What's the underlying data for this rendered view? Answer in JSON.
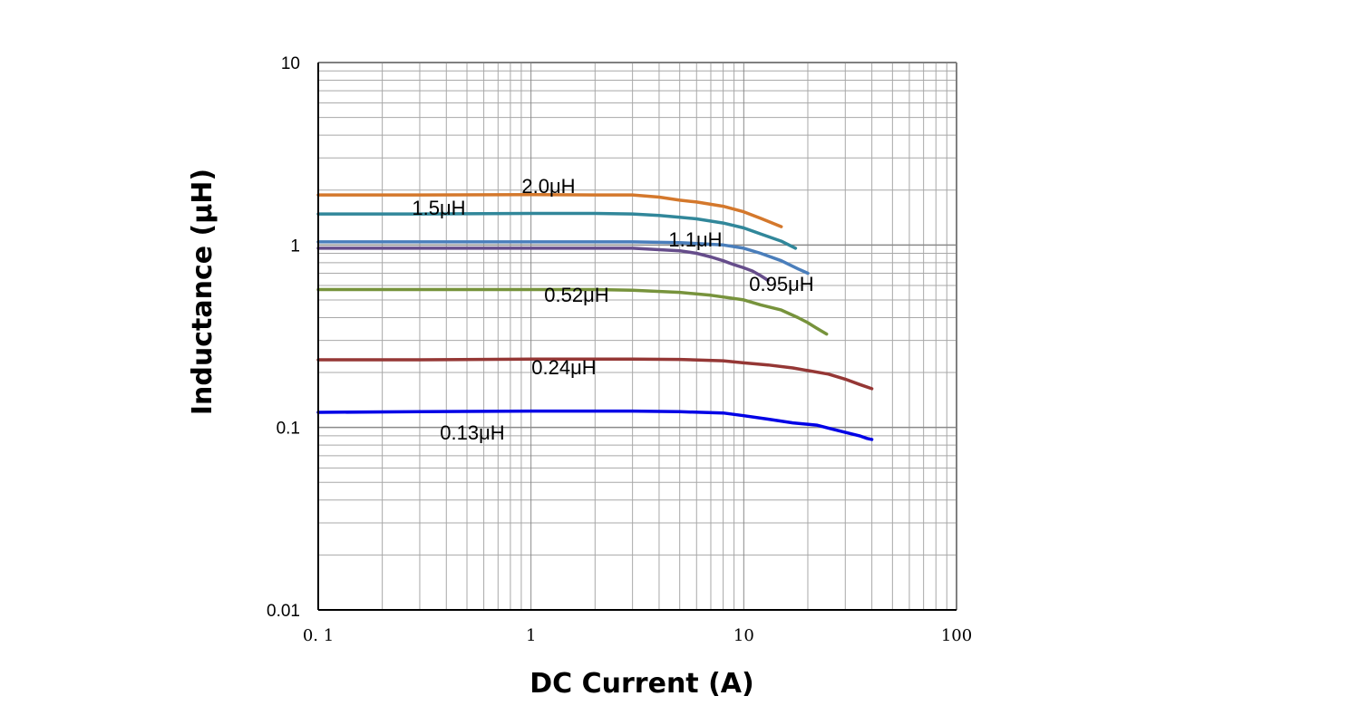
{
  "chart_data": {
    "type": "line",
    "xlabel": "DC Current (A)",
    "ylabel": "Inductance (μH)",
    "x_scale": "log",
    "y_scale": "log",
    "xlim": [
      0.1,
      100
    ],
    "ylim": [
      0.01,
      10
    ],
    "x_tick_labels": [
      "0. 1",
      "1",
      "10",
      "100"
    ],
    "y_tick_labels": [
      "0.01",
      "0.1",
      "1",
      "10"
    ],
    "grid": true,
    "legend": "none (inline labels)",
    "series": [
      {
        "name": "2.0μH",
        "color": "#D4782C",
        "x": [
          0.1,
          0.3,
          1,
          2,
          3,
          4,
          5,
          6,
          8,
          10,
          12,
          15
        ],
        "y": [
          1.88,
          1.88,
          1.89,
          1.88,
          1.88,
          1.83,
          1.76,
          1.72,
          1.63,
          1.52,
          1.4,
          1.26
        ]
      },
      {
        "name": "1.5μH",
        "color": "#31879A",
        "x": [
          0.1,
          0.3,
          1,
          2,
          3,
          4,
          5,
          6,
          8,
          10,
          12,
          15,
          17.5
        ],
        "y": [
          1.48,
          1.48,
          1.49,
          1.49,
          1.48,
          1.45,
          1.42,
          1.39,
          1.32,
          1.24,
          1.15,
          1.05,
          0.96
        ]
      },
      {
        "name": "1.1μH",
        "color": "#4A7EBB",
        "x": [
          0.1,
          0.3,
          1,
          2,
          3,
          5,
          8,
          10,
          12,
          15,
          18,
          20
        ],
        "y": [
          1.04,
          1.04,
          1.04,
          1.04,
          1.04,
          1.03,
          1.0,
          0.96,
          0.9,
          0.82,
          0.74,
          0.7
        ]
      },
      {
        "name": "0.95μH",
        "color": "#664D8B",
        "x": [
          0.1,
          0.3,
          1,
          2,
          3,
          5,
          6,
          7,
          8,
          9,
          10,
          11,
          12,
          13
        ],
        "y": [
          0.96,
          0.96,
          0.96,
          0.96,
          0.96,
          0.93,
          0.9,
          0.86,
          0.82,
          0.78,
          0.75,
          0.72,
          0.68,
          0.64
        ]
      },
      {
        "name": "0.52μH",
        "color": "#77933C",
        "x": [
          0.1,
          0.3,
          1,
          2,
          3,
          5,
          7,
          10,
          12,
          15,
          18,
          20,
          22,
          24.5
        ],
        "y": [
          0.57,
          0.57,
          0.57,
          0.57,
          0.565,
          0.55,
          0.53,
          0.5,
          0.47,
          0.44,
          0.4,
          0.375,
          0.35,
          0.325
        ]
      },
      {
        "name": "0.24μH",
        "color": "#953735",
        "x": [
          0.1,
          0.3,
          1,
          2,
          3,
          5,
          8,
          10,
          13,
          17,
          20,
          25,
          30,
          35,
          40
        ],
        "y": [
          0.235,
          0.235,
          0.237,
          0.237,
          0.237,
          0.236,
          0.232,
          0.226,
          0.22,
          0.212,
          0.205,
          0.196,
          0.184,
          0.172,
          0.163
        ]
      },
      {
        "name": "0.13μH",
        "color": "#0000E6",
        "x": [
          0.1,
          0.3,
          1,
          2,
          3,
          5,
          8,
          10,
          13,
          17,
          22,
          26,
          30,
          35,
          38,
          40
        ],
        "y": [
          0.121,
          0.122,
          0.123,
          0.123,
          0.123,
          0.122,
          0.12,
          0.116,
          0.111,
          0.106,
          0.103,
          0.098,
          0.094,
          0.09,
          0.087,
          0.086
        ]
      }
    ]
  }
}
